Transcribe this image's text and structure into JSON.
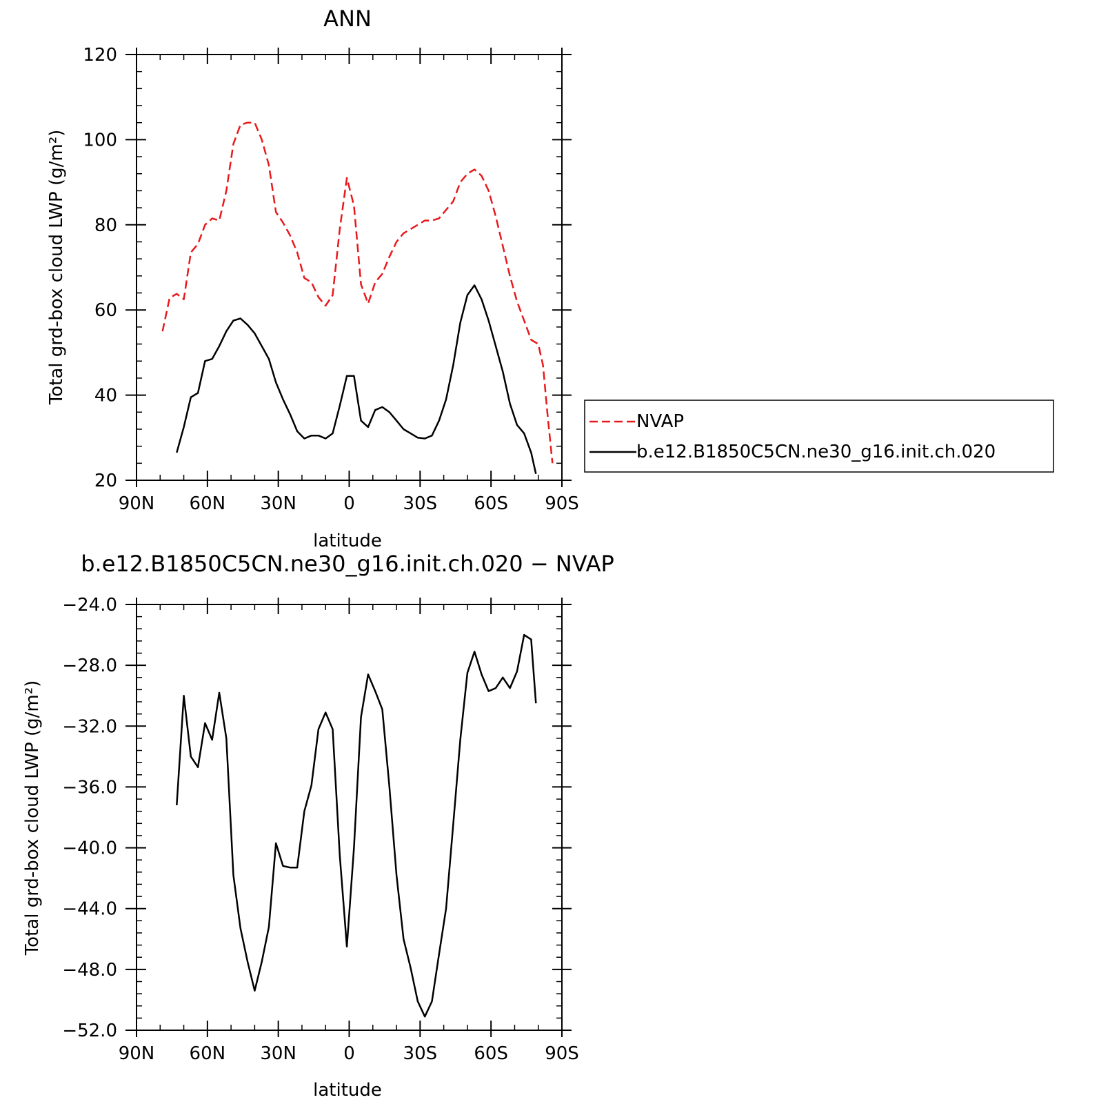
{
  "chart_data": [
    {
      "type": "line",
      "title": "ANN",
      "xlabel": "latitude",
      "ylabel": "Total grd-box cloud LWP (g/m²)",
      "xlim": [
        90,
        -90
      ],
      "ylim": [
        20,
        120
      ],
      "x_ticks": [
        {
          "value": 90,
          "label": "90N"
        },
        {
          "value": 60,
          "label": "60N"
        },
        {
          "value": 30,
          "label": "30N"
        },
        {
          "value": 0,
          "label": "0"
        },
        {
          "value": -30,
          "label": "30S"
        },
        {
          "value": -60,
          "label": "60S"
        },
        {
          "value": -90,
          "label": "90S"
        }
      ],
      "y_ticks": [
        {
          "value": 20,
          "label": "20"
        },
        {
          "value": 40,
          "label": "40"
        },
        {
          "value": 60,
          "label": "60"
        },
        {
          "value": 80,
          "label": "80"
        },
        {
          "value": 100,
          "label": "100"
        },
        {
          "value": 120,
          "label": "120"
        }
      ],
      "legend_position": "right",
      "series": [
        {
          "name": "NVAP",
          "color": "#e8191c",
          "dash": true,
          "points": [
            [
              79,
              55.0
            ],
            [
              76,
              62.8
            ],
            [
              73,
              63.8
            ],
            [
              70,
              62.5
            ],
            [
              67,
              73.5
            ],
            [
              64,
              75.5
            ],
            [
              61,
              80.0
            ],
            [
              58,
              81.5
            ],
            [
              55,
              81.0
            ],
            [
              52,
              88.0
            ],
            [
              49,
              99.0
            ],
            [
              46,
              103.5
            ],
            [
              43,
              104.0
            ],
            [
              40,
              104.0
            ],
            [
              37,
              100.0
            ],
            [
              34,
              94.0
            ],
            [
              31,
              83.0
            ],
            [
              28,
              80.5
            ],
            [
              25,
              77.5
            ],
            [
              22,
              73.5
            ],
            [
              19,
              67.5
            ],
            [
              16,
              66.5
            ],
            [
              13,
              63.0
            ],
            [
              10,
              61.0
            ],
            [
              7,
              63.5
            ],
            [
              4,
              79.0
            ],
            [
              1,
              91.0
            ],
            [
              -2,
              84.5
            ],
            [
              -5,
              66.0
            ],
            [
              -8,
              61.5
            ],
            [
              -11,
              66.5
            ],
            [
              -14,
              68.5
            ],
            [
              -17,
              72.5
            ],
            [
              -20,
              76.0
            ],
            [
              -23,
              78.0
            ],
            [
              -26,
              79.0
            ],
            [
              -29,
              80.0
            ],
            [
              -32,
              81.0
            ],
            [
              -35,
              81.0
            ],
            [
              -38,
              81.5
            ],
            [
              -41,
              83.5
            ],
            [
              -44,
              85.5
            ],
            [
              -47,
              90.0
            ],
            [
              -50,
              92.0
            ],
            [
              -53,
              93.0
            ],
            [
              -56,
              91.5
            ],
            [
              -59,
              88.0
            ],
            [
              -62,
              82.0
            ],
            [
              -65,
              75.0
            ],
            [
              -68,
              68.0
            ],
            [
              -71,
              62.0
            ],
            [
              -74,
              57.5
            ],
            [
              -77,
              53.0
            ],
            [
              -80,
              52.0
            ],
            [
              -82,
              47.0
            ],
            [
              -84,
              35.0
            ],
            [
              -86,
              24.0
            ]
          ]
        },
        {
          "name": "b.e12.B1850C5CN.ne30_g16.init.ch.020",
          "color": "#000000",
          "dash": false,
          "points": [
            [
              73,
              26.5
            ],
            [
              70,
              32.5
            ],
            [
              67,
              39.5
            ],
            [
              64,
              40.5
            ],
            [
              61,
              48.0
            ],
            [
              58,
              48.5
            ],
            [
              55,
              51.5
            ],
            [
              52,
              55.0
            ],
            [
              49,
              57.5
            ],
            [
              46,
              58.0
            ],
            [
              43,
              56.5
            ],
            [
              40,
              54.5
            ],
            [
              37,
              51.5
            ],
            [
              34,
              48.5
            ],
            [
              31,
              43.0
            ],
            [
              28,
              39.0
            ],
            [
              25,
              35.5
            ],
            [
              22,
              31.5
            ],
            [
              19,
              29.8
            ],
            [
              16,
              30.5
            ],
            [
              13,
              30.5
            ],
            [
              10,
              29.8
            ],
            [
              7,
              31.0
            ],
            [
              4,
              37.5
            ],
            [
              1,
              44.5
            ],
            [
              -2,
              44.5
            ],
            [
              -5,
              34.0
            ],
            [
              -8,
              32.5
            ],
            [
              -11,
              36.5
            ],
            [
              -14,
              37.2
            ],
            [
              -17,
              36.0
            ],
            [
              -20,
              34.0
            ],
            [
              -23,
              32.0
            ],
            [
              -26,
              31.0
            ],
            [
              -29,
              30.0
            ],
            [
              -32,
              29.8
            ],
            [
              -35,
              30.5
            ],
            [
              -38,
              34.0
            ],
            [
              -41,
              39.0
            ],
            [
              -44,
              47.0
            ],
            [
              -47,
              57.0
            ],
            [
              -50,
              63.5
            ],
            [
              -53,
              65.8
            ],
            [
              -56,
              62.5
            ],
            [
              -59,
              57.5
            ],
            [
              -62,
              51.5
            ],
            [
              -65,
              45.5
            ],
            [
              -68,
              38.0
            ],
            [
              -71,
              33.0
            ],
            [
              -74,
              31.0
            ],
            [
              -77,
              26.5
            ],
            [
              -79,
              21.5
            ]
          ]
        }
      ]
    },
    {
      "type": "line",
      "title": "b.e12.B1850C5CN.ne30_g16.init.ch.020 − NVAP",
      "xlabel": "latitude",
      "ylabel": "Total grd-box cloud LWP (g/m²)",
      "xlim": [
        90,
        -90
      ],
      "ylim": [
        -52,
        -24
      ],
      "x_ticks": [
        {
          "value": 90,
          "label": "90N"
        },
        {
          "value": 60,
          "label": "60N"
        },
        {
          "value": 30,
          "label": "30N"
        },
        {
          "value": 0,
          "label": "0"
        },
        {
          "value": -30,
          "label": "30S"
        },
        {
          "value": -60,
          "label": "60S"
        },
        {
          "value": -90,
          "label": "90S"
        }
      ],
      "y_ticks": [
        {
          "value": -52,
          "label": "−52.0"
        },
        {
          "value": -48,
          "label": "−48.0"
        },
        {
          "value": -44,
          "label": "−44.0"
        },
        {
          "value": -40,
          "label": "−40.0"
        },
        {
          "value": -36,
          "label": "−36.0"
        },
        {
          "value": -32,
          "label": "−32.0"
        },
        {
          "value": -28,
          "label": "−28.0"
        },
        {
          "value": -24,
          "label": "−24.0"
        }
      ],
      "series": [
        {
          "color": "#000000",
          "dash": false,
          "points": [
            [
              73,
              -37.2
            ],
            [
              70,
              -30.0
            ],
            [
              67,
              -34.0
            ],
            [
              64,
              -34.7
            ],
            [
              61,
              -31.8
            ],
            [
              58,
              -32.9
            ],
            [
              55,
              -29.8
            ],
            [
              52,
              -32.8
            ],
            [
              49,
              -41.8
            ],
            [
              46,
              -45.3
            ],
            [
              43,
              -47.5
            ],
            [
              40,
              -49.4
            ],
            [
              37,
              -47.5
            ],
            [
              34,
              -45.2
            ],
            [
              31,
              -39.7
            ],
            [
              28,
              -41.2
            ],
            [
              25,
              -41.3
            ],
            [
              22,
              -41.3
            ],
            [
              19,
              -37.6
            ],
            [
              16,
              -35.9
            ],
            [
              13,
              -32.2
            ],
            [
              10,
              -31.1
            ],
            [
              7,
              -32.2
            ],
            [
              4,
              -40.5
            ],
            [
              1,
              -46.5
            ],
            [
              -2,
              -40.0
            ],
            [
              -5,
              -31.4
            ],
            [
              -8,
              -28.6
            ],
            [
              -11,
              -29.7
            ],
            [
              -14,
              -30.9
            ],
            [
              -17,
              -36.0
            ],
            [
              -20,
              -41.8
            ],
            [
              -23,
              -46.0
            ],
            [
              -26,
              -47.9
            ],
            [
              -29,
              -50.1
            ],
            [
              -32,
              -51.1
            ],
            [
              -35,
              -50.1
            ],
            [
              -38,
              -47.0
            ],
            [
              -41,
              -44.0
            ],
            [
              -44,
              -38.5
            ],
            [
              -47,
              -32.9
            ],
            [
              -50,
              -28.5
            ],
            [
              -53,
              -27.1
            ],
            [
              -56,
              -28.6
            ],
            [
              -59,
              -29.7
            ],
            [
              -62,
              -29.5
            ],
            [
              -65,
              -28.8
            ],
            [
              -68,
              -29.5
            ],
            [
              -71,
              -28.4
            ],
            [
              -74,
              -26.0
            ],
            [
              -77,
              -26.3
            ],
            [
              -79,
              -30.5
            ]
          ]
        }
      ]
    }
  ]
}
